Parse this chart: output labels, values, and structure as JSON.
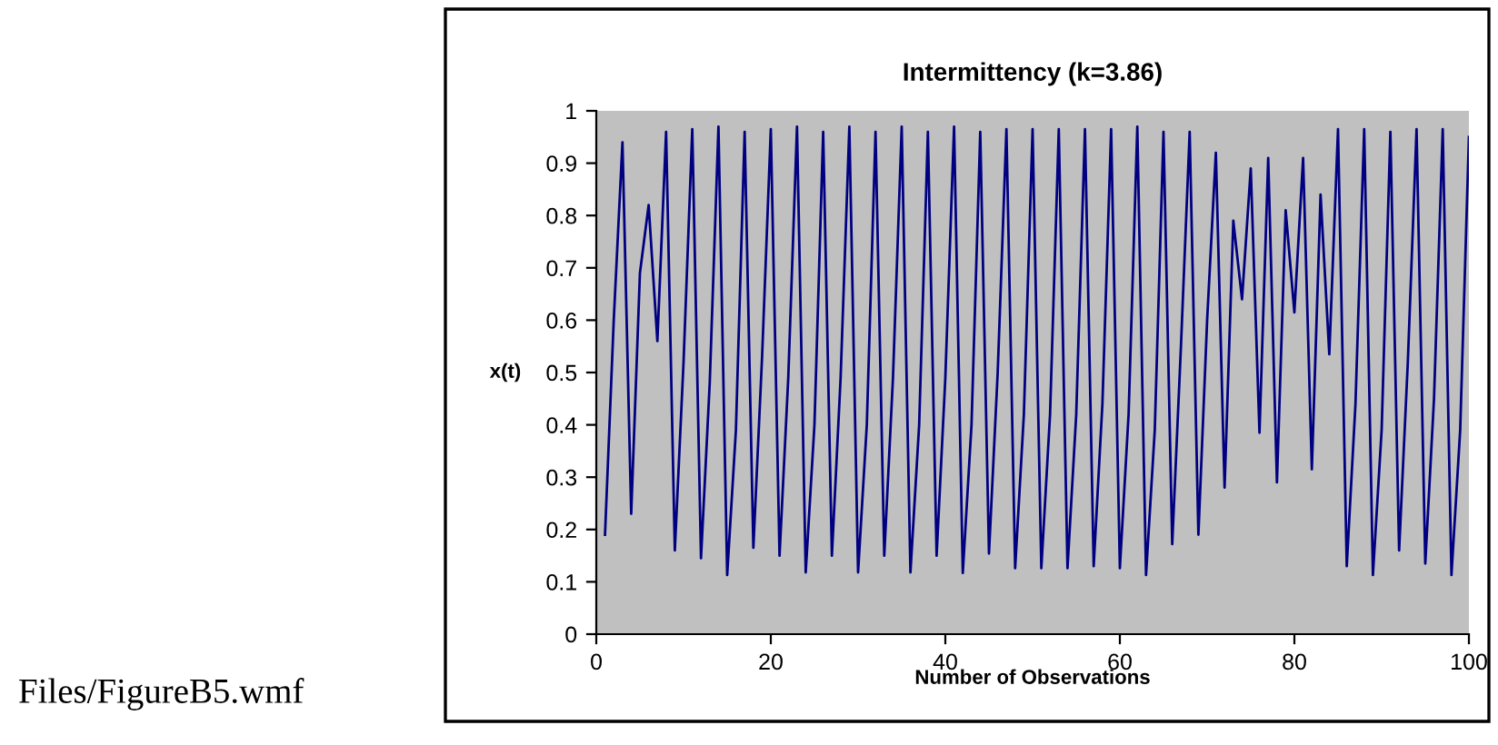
{
  "chart_data": {
    "type": "line",
    "title": "Intermittency (k=3.86)",
    "xlabel": "Number of Observations",
    "ylabel": "x(t)",
    "annotations": [
      "Files/FigureB5.wmf"
    ],
    "x": [
      1,
      2,
      3,
      4,
      5,
      6,
      7,
      8,
      9,
      10,
      11,
      12,
      13,
      14,
      15,
      16,
      17,
      18,
      19,
      20,
      21,
      22,
      23,
      24,
      25,
      26,
      27,
      28,
      29,
      30,
      31,
      32,
      33,
      34,
      35,
      36,
      37,
      38,
      39,
      40,
      41,
      42,
      43,
      44,
      45,
      46,
      47,
      48,
      49,
      50,
      51,
      52,
      53,
      54,
      55,
      56,
      57,
      58,
      59,
      60,
      61,
      62,
      63,
      64,
      65,
      66,
      67,
      68,
      69,
      70,
      71,
      72,
      73,
      74,
      75,
      76,
      77,
      78,
      79,
      80,
      81,
      82,
      83,
      84,
      85,
      86,
      87,
      88,
      89,
      90,
      91,
      92,
      93,
      94,
      95,
      96,
      97,
      98,
      99,
      100
    ],
    "series": [
      {
        "color": "#000080",
        "values": [
          0.19,
          0.6,
          0.94,
          0.23,
          0.69,
          0.82,
          0.56,
          0.96,
          0.16,
          0.52,
          0.965,
          0.145,
          0.48,
          0.97,
          0.113,
          0.39,
          0.96,
          0.165,
          0.53,
          0.965,
          0.15,
          0.49,
          0.97,
          0.118,
          0.4,
          0.96,
          0.15,
          0.49,
          0.97,
          0.118,
          0.4,
          0.96,
          0.15,
          0.49,
          0.97,
          0.118,
          0.4,
          0.96,
          0.15,
          0.49,
          0.97,
          0.117,
          0.4,
          0.96,
          0.154,
          0.5,
          0.965,
          0.126,
          0.42,
          0.965,
          0.126,
          0.42,
          0.965,
          0.126,
          0.42,
          0.965,
          0.13,
          0.44,
          0.965,
          0.126,
          0.42,
          0.97,
          0.113,
          0.39,
          0.96,
          0.172,
          0.55,
          0.96,
          0.19,
          0.6,
          0.92,
          0.28,
          0.79,
          0.64,
          0.89,
          0.385,
          0.91,
          0.29,
          0.81,
          0.615,
          0.91,
          0.315,
          0.84,
          0.535,
          0.965,
          0.13,
          0.44,
          0.965,
          0.113,
          0.39,
          0.96,
          0.16,
          0.52,
          0.965,
          0.135,
          0.45,
          0.965,
          0.113,
          0.39,
          0.95
        ]
      }
    ],
    "xlim": [
      0,
      100
    ],
    "xticks": [
      0,
      20,
      40,
      60,
      80,
      100
    ],
    "ylim": [
      0,
      1
    ],
    "yticks": [
      0,
      0.1,
      0.2,
      0.3,
      0.4,
      0.5,
      0.6,
      0.7,
      0.8,
      0.9,
      1
    ],
    "grid": false,
    "legend": false,
    "marker": "none",
    "line_style": "solid"
  }
}
